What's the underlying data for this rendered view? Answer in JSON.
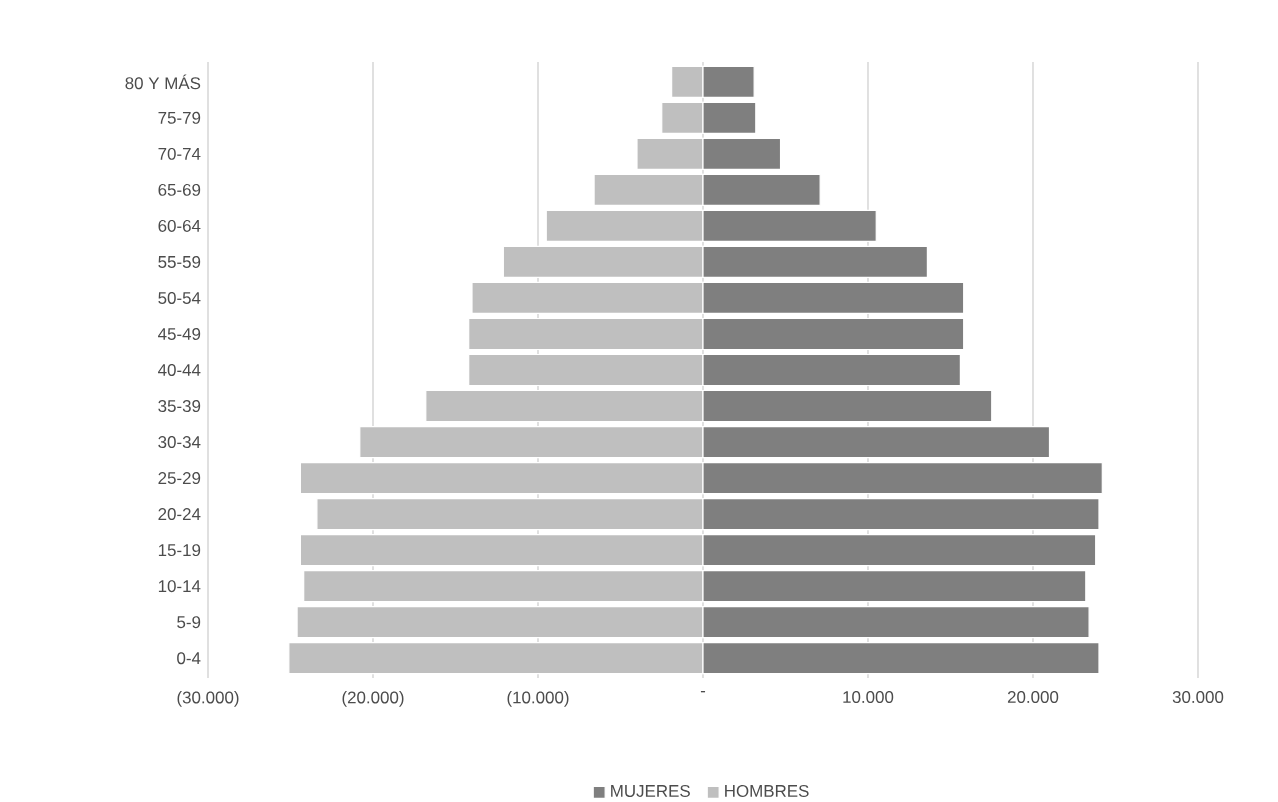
{
  "chart_data": {
    "type": "bar",
    "orientation": "horizontal",
    "stacked": true,
    "categories": [
      "80 Y MÁS",
      "75-79",
      "70-74",
      "65-69",
      "60-64",
      "55-59",
      "50-54",
      "45-49",
      "40-44",
      "35-39",
      "30-34",
      "25-29",
      "20-24",
      "15-19",
      "10-14",
      "5-9",
      "0-4"
    ],
    "series": [
      {
        "name": "MUJERES",
        "color": "#7f7f7f",
        "values": [
          3100,
          3200,
          4700,
          7100,
          10500,
          13600,
          15800,
          15800,
          15600,
          17500,
          21000,
          24200,
          24000,
          23800,
          23200,
          23400,
          24000
        ]
      },
      {
        "name": "HOMBRES",
        "color": "#bfbfbf",
        "values": [
          -1900,
          -2500,
          -4000,
          -6600,
          -9500,
          -12100,
          -14000,
          -14200,
          -14200,
          -16800,
          -20800,
          -24400,
          -23400,
          -24400,
          -24200,
          -24600,
          -25100
        ]
      }
    ],
    "xlim": [
      -30000,
      30000
    ],
    "xticks": [
      {
        "value": -30000,
        "label": "(30.000)"
      },
      {
        "value": -20000,
        "label": "(20.000)"
      },
      {
        "value": -10000,
        "label": "(10.000)"
      },
      {
        "value": 0,
        "label": "-"
      },
      {
        "value": 10000,
        "label": "10.000"
      },
      {
        "value": 20000,
        "label": "20.000"
      },
      {
        "value": 30000,
        "label": "30.000"
      }
    ],
    "grid": "x",
    "legend": "bottom"
  }
}
